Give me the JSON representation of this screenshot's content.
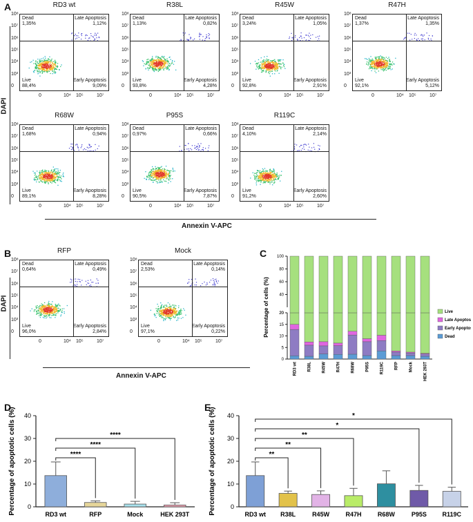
{
  "panels": {
    "A": "A",
    "B": "B",
    "C": "C",
    "D": "D",
    "E": "E"
  },
  "flow": {
    "quadrant_labels": {
      "dead": "Dead",
      "late": "Late Apoptosis",
      "live": "Live",
      "early": "Early Apoptosis"
    },
    "y_axis_label": "DAPI",
    "x_axis_label": "Annexin V-APC",
    "y_ticks": [
      "10⁸",
      "10⁷",
      "10⁶",
      "10⁵",
      "10⁴",
      "10³",
      "0"
    ],
    "x_ticks": [
      "0",
      "10⁴",
      "10⁵",
      "10⁷"
    ],
    "plots_A": [
      {
        "title": "RD3 wt",
        "dead": "1,35%",
        "late": "1,12%",
        "live": "88,4%",
        "early": "9,09%"
      },
      {
        "title": "R38L",
        "dead": "1,13%",
        "late": "0,82%",
        "live": "93,8%",
        "early": "4,28%"
      },
      {
        "title": "R45W",
        "dead": "3,24%",
        "late": "1,05%",
        "live": "92,8%",
        "early": "2,91%"
      },
      {
        "title": "R47H",
        "dead": "1,37%",
        "late": "1,35%",
        "live": "92,1%",
        "early": "5,12%"
      },
      {
        "title": "R68W",
        "dead": "1,68%",
        "late": "0,94%",
        "live": "89,1%",
        "early": "8,28%"
      },
      {
        "title": "P95S",
        "dead": "0,97%",
        "late": "0,66%",
        "live": "90,5%",
        "early": "7,87%"
      },
      {
        "title": "R119C",
        "dead": "4,10%",
        "late": "2,14%",
        "live": "91,2%",
        "early": "2,60%"
      }
    ],
    "plots_B": [
      {
        "title": "RFP",
        "dead": "0,64%",
        "late": "0,49%",
        "live": "96,0%",
        "early": "2,84%"
      },
      {
        "title": "Mock",
        "dead": "2,53%",
        "late": "0,14%",
        "live": "97,1%",
        "early": "0,22%"
      }
    ]
  },
  "chart_data": [
    {
      "id": "C",
      "type": "bar",
      "stacked": true,
      "ylabel": "Percentage of cells (%)",
      "categories": [
        "RD3 wt",
        "R38L",
        "R45W",
        "R47H",
        "R68W",
        "P95S",
        "R119C",
        "RFP",
        "Mock",
        "HEK 293T"
      ],
      "series": [
        {
          "name": "Dead",
          "color": "#5b9bd5",
          "values": [
            1.4,
            1.2,
            2.2,
            2.0,
            2.1,
            1.5,
            3.5,
            1.5,
            1.5,
            1.2
          ]
        },
        {
          "name": "Early Apoptosis",
          "color": "#8e7cc3",
          "values": [
            11.4,
            4.8,
            3.5,
            3.8,
            8.3,
            6.0,
            4.5,
            1.5,
            1.1,
            1.0
          ]
        },
        {
          "name": "Late Apoptosis",
          "color": "#e066e0",
          "values": [
            2.2,
            1.4,
            1.8,
            1.1,
            1.6,
            1.3,
            2.3,
            0.5,
            0.4,
            0.3
          ]
        },
        {
          "name": "Live",
          "color": "#a6e07e",
          "values": [
            85.0,
            92.6,
            92.5,
            93.1,
            88.0,
            91.2,
            89.7,
            96.5,
            97.0,
            97.5
          ]
        }
      ],
      "yticks_lower": [
        "0",
        "5",
        "10",
        "15",
        "20"
      ],
      "yticks_upper": [
        "20",
        "40",
        "60",
        "80",
        "100"
      ],
      "legend_position": "right"
    },
    {
      "id": "D",
      "type": "bar",
      "ylabel": "Percentage of apoptotic cells (%)",
      "categories": [
        "RD3 wt",
        "RFP",
        "Mock",
        "HEK 293T"
      ],
      "values": [
        13.7,
        1.9,
        1.2,
        0.8
      ],
      "errors": [
        6.0,
        0.7,
        1.2,
        1.0
      ],
      "colors": [
        "#8eaedb",
        "#e6d69a",
        "#a9e2ee",
        "#f3a6b7"
      ],
      "ylim": [
        0,
        40
      ],
      "yticks": [
        "0",
        "10",
        "20",
        "30",
        "40"
      ],
      "significance": [
        {
          "from": 0,
          "to": 1,
          "label": "****"
        },
        {
          "from": 0,
          "to": 2,
          "label": "****"
        },
        {
          "from": 0,
          "to": 3,
          "label": "****"
        }
      ]
    },
    {
      "id": "E",
      "type": "bar",
      "ylabel": "Percentage of apoptotic cells (%)",
      "categories": [
        "RD3 wt",
        "R38L",
        "R45W",
        "R47H",
        "R68W",
        "P95S",
        "R119C"
      ],
      "values": [
        13.7,
        5.9,
        5.4,
        4.9,
        10.1,
        7.2,
        6.8
      ],
      "errors": [
        6.0,
        1.0,
        1.6,
        3.2,
        5.7,
        2.2,
        1.8
      ],
      "colors": [
        "#7ea0d6",
        "#e2c24a",
        "#e2b3e6",
        "#b9ec68",
        "#2e8fa0",
        "#6f5aa8",
        "#c7d2e8"
      ],
      "ylim": [
        0,
        40
      ],
      "yticks": [
        "0",
        "10",
        "20",
        "30",
        "40"
      ],
      "significance": [
        {
          "from": 0,
          "to": 1,
          "label": "**"
        },
        {
          "from": 0,
          "to": 2,
          "label": "**"
        },
        {
          "from": 0,
          "to": 3,
          "label": "**"
        },
        {
          "from": 0,
          "to": 5,
          "label": "*"
        },
        {
          "from": 0,
          "to": 6,
          "label": "*"
        }
      ]
    }
  ]
}
